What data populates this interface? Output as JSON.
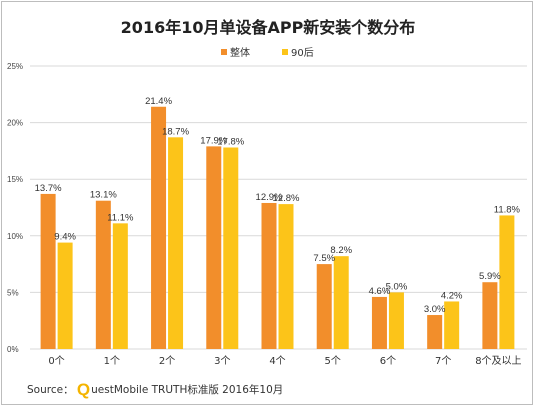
{
  "chart_data": {
    "type": "bar",
    "title": "2016年10月单设备APP新安装个数分布",
    "categories": [
      "0个",
      "1个",
      "2个",
      "3个",
      "4个",
      "5个",
      "6个",
      "7个",
      "8个及以上"
    ],
    "series": [
      {
        "name": "整体",
        "color": "#f28e2b",
        "values": [
          13.7,
          13.1,
          21.4,
          17.9,
          12.9,
          7.5,
          4.6,
          3.0,
          5.9
        ]
      },
      {
        "name": "90后",
        "color": "#fcc419",
        "values": [
          9.4,
          11.1,
          18.7,
          17.8,
          12.8,
          8.2,
          5.0,
          4.2,
          11.8
        ]
      }
    ],
    "value_suffix": "%",
    "ylim": [
      0,
      25
    ],
    "yticks": [
      0,
      5,
      10,
      15,
      20,
      25
    ],
    "ytick_labels": [
      "0%",
      "5%",
      "10%",
      "15%",
      "20%",
      "25%"
    ],
    "grid": true,
    "legend_position": "top-center"
  },
  "source": {
    "prefix": "Source：",
    "brand_letter": "Q",
    "text": "uestMobile TRUTH标准版 2016年10月"
  }
}
